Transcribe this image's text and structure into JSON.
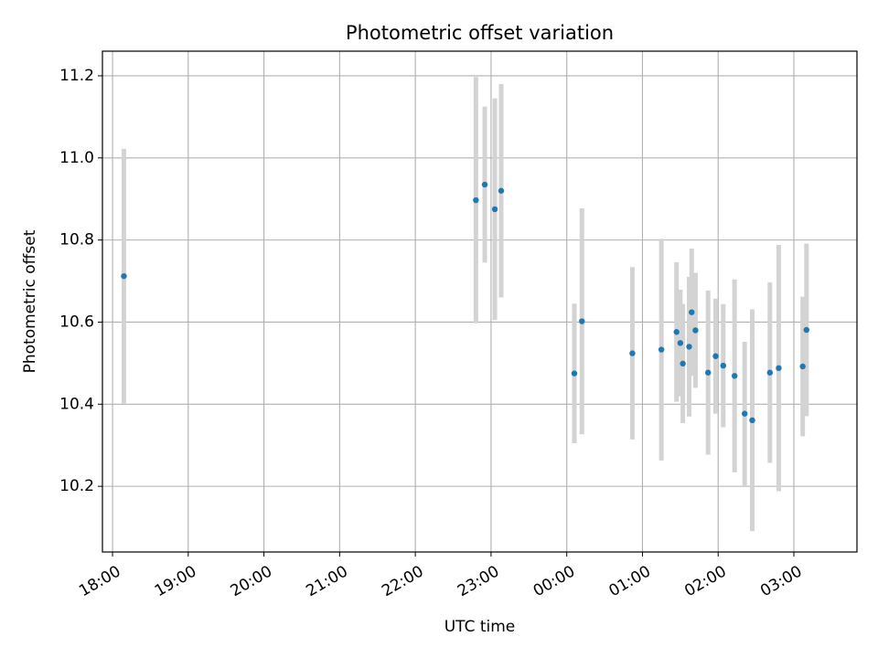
{
  "chart_data": {
    "type": "scatter",
    "title": "Photometric offset variation",
    "xlabel": "UTC time",
    "ylabel": "Photometric offset",
    "x_unit": "UTC time (HH:MM, spanning midnight)",
    "xlim": [
      "17:52",
      "03:50"
    ],
    "ylim": [
      10.04,
      11.26
    ],
    "grid": true,
    "x_ticks": [
      "18:00",
      "19:00",
      "20:00",
      "21:00",
      "22:00",
      "23:00",
      "00:00",
      "01:00",
      "02:00",
      "03:00"
    ],
    "y_ticks": [
      "10.2",
      "10.4",
      "10.6",
      "10.8",
      "11.0",
      "11.2"
    ],
    "marker_color": "#1f77b4",
    "errorbar_color": "#d3d3d3",
    "points": [
      {
        "time": "18:09",
        "y": 10.712,
        "err": 0.31
      },
      {
        "time": "22:48",
        "y": 10.897,
        "err": 0.3
      },
      {
        "time": "22:55",
        "y": 10.935,
        "err": 0.19
      },
      {
        "time": "23:03",
        "y": 10.875,
        "err": 0.27
      },
      {
        "time": "23:08",
        "y": 10.92,
        "err": 0.26
      },
      {
        "time": "00:06",
        "y": 10.475,
        "err": 0.17
      },
      {
        "time": "00:12",
        "y": 10.602,
        "err": 0.275
      },
      {
        "time": "00:52",
        "y": 10.524,
        "err": 0.21
      },
      {
        "time": "01:15",
        "y": 10.533,
        "err": 0.27
      },
      {
        "time": "01:27",
        "y": 10.576,
        "err": 0.17
      },
      {
        "time": "01:30",
        "y": 10.549,
        "err": 0.13
      },
      {
        "time": "01:32",
        "y": 10.499,
        "err": 0.145
      },
      {
        "time": "01:37",
        "y": 10.54,
        "err": 0.17
      },
      {
        "time": "01:39",
        "y": 10.624,
        "err": 0.155
      },
      {
        "time": "01:42",
        "y": 10.58,
        "err": 0.14
      },
      {
        "time": "01:52",
        "y": 10.477,
        "err": 0.2
      },
      {
        "time": "01:58",
        "y": 10.517,
        "err": 0.14
      },
      {
        "time": "02:04",
        "y": 10.494,
        "err": 0.15
      },
      {
        "time": "02:13",
        "y": 10.469,
        "err": 0.235
      },
      {
        "time": "02:21",
        "y": 10.377,
        "err": 0.175
      },
      {
        "time": "02:27",
        "y": 10.361,
        "err": 0.27
      },
      {
        "time": "02:41",
        "y": 10.477,
        "err": 0.22
      },
      {
        "time": "02:48",
        "y": 10.488,
        "err": 0.3
      },
      {
        "time": "03:07",
        "y": 10.492,
        "err": 0.17
      },
      {
        "time": "03:10",
        "y": 10.581,
        "err": 0.21
      }
    ]
  }
}
